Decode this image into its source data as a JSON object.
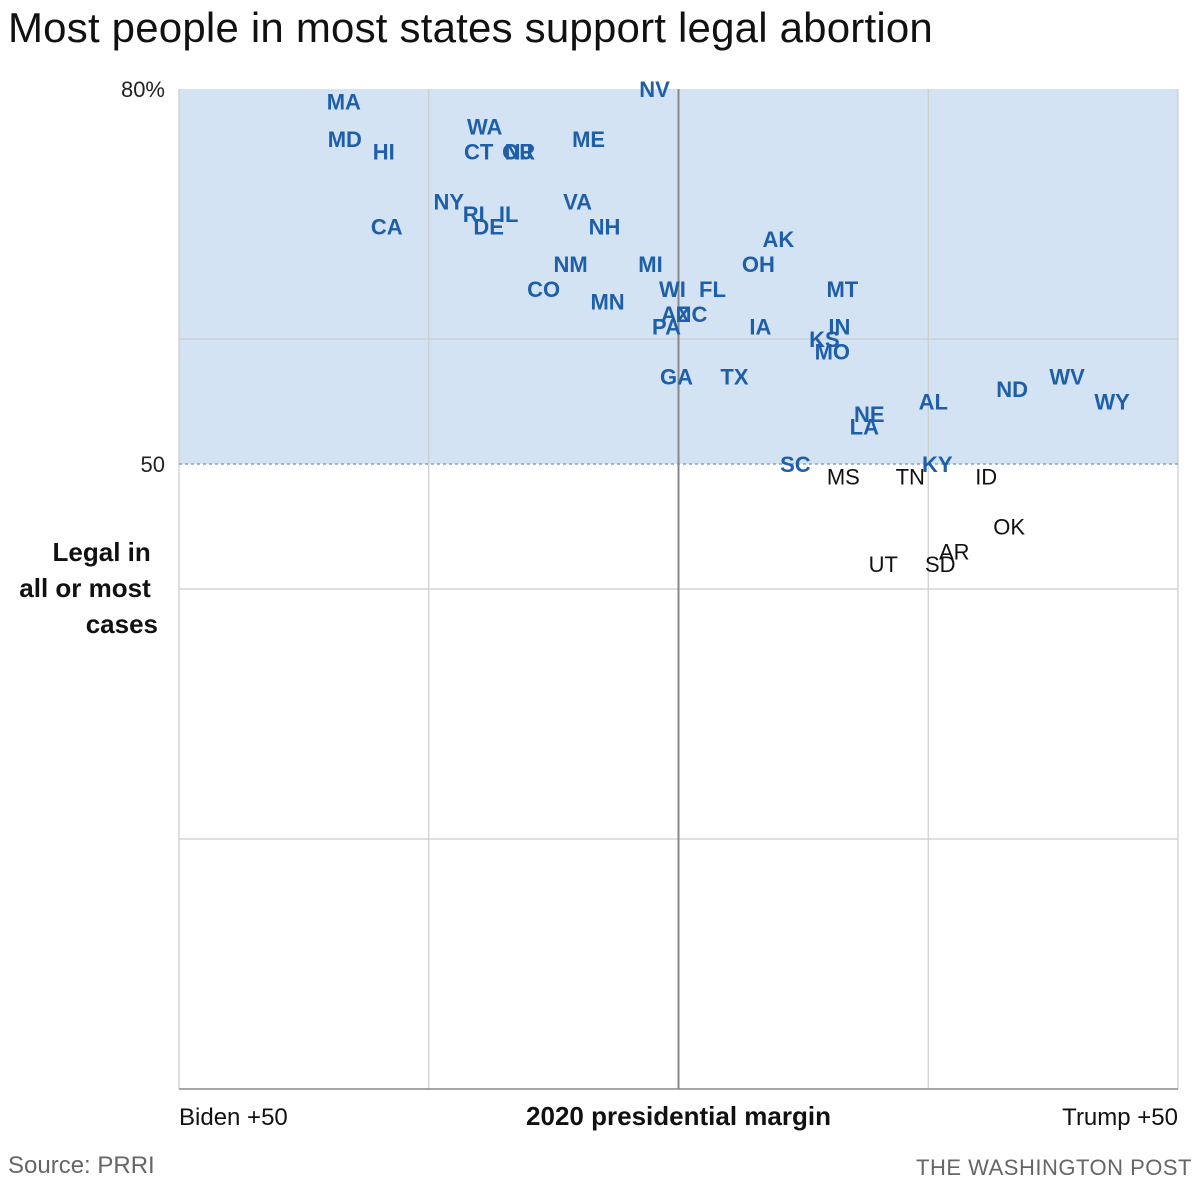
{
  "title": "Most people in most states support legal abortion",
  "source": "Source: PRRI",
  "credit": "THE WASHINGTON POST",
  "colors": {
    "shade": "#d3e3f4",
    "highlight": "#1f5fa8",
    "grid": "#cccccc",
    "axis": "#888888"
  },
  "chart_data": {
    "type": "scatter",
    "xlabel": "2020 presidential margin",
    "ylabel": [
      "Legal in",
      "all or most",
      "cases"
    ],
    "x_tick_labels": {
      "left": "Biden +50",
      "right": "Trump +50"
    },
    "xlim": [
      -50,
      50
    ],
    "ylim": [
      0,
      80
    ],
    "y_ticks": [
      {
        "value": 80,
        "label": "80%"
      },
      {
        "value": 50,
        "label": "50"
      }
    ],
    "y_grid": [
      20,
      40,
      60
    ],
    "x_grid": [
      -25,
      0,
      25
    ],
    "threshold": 50,
    "threshold_style": "dotted",
    "grid": true,
    "points": [
      {
        "label": "MA",
        "x": -33.5,
        "y": 79
      },
      {
        "label": "MD",
        "x": -33.4,
        "y": 76
      },
      {
        "label": "HI",
        "x": -29.5,
        "y": 75
      },
      {
        "label": "WA",
        "x": -19.4,
        "y": 77
      },
      {
        "label": "CT",
        "x": -20,
        "y": 75
      },
      {
        "label": "OR",
        "x": -16,
        "y": 75
      },
      {
        "label": "NJ",
        "x": -16,
        "y": 75
      },
      {
        "label": "ME",
        "x": -9,
        "y": 76
      },
      {
        "label": "NV",
        "x": -2.4,
        "y": 80
      },
      {
        "label": "NY",
        "x": -23,
        "y": 71
      },
      {
        "label": "RI",
        "x": -20.5,
        "y": 70
      },
      {
        "label": "IL",
        "x": -17,
        "y": 70
      },
      {
        "label": "DE",
        "x": -19,
        "y": 69
      },
      {
        "label": "CA",
        "x": -29.2,
        "y": 69
      },
      {
        "label": "VA",
        "x": -10.1,
        "y": 71
      },
      {
        "label": "NH",
        "x": -7.4,
        "y": 69
      },
      {
        "label": "NM",
        "x": -10.8,
        "y": 66
      },
      {
        "label": "CO",
        "x": -13.5,
        "y": 64
      },
      {
        "label": "MN",
        "x": -7.1,
        "y": 63
      },
      {
        "label": "MI",
        "x": -2.8,
        "y": 66
      },
      {
        "label": "WI",
        "x": -0.6,
        "y": 64
      },
      {
        "label": "FL",
        "x": 3.4,
        "y": 64
      },
      {
        "label": "AZ",
        "x": -0.3,
        "y": 62
      },
      {
        "label": "NC",
        "x": 1.3,
        "y": 62
      },
      {
        "label": "PA",
        "x": -1.2,
        "y": 61
      },
      {
        "label": "AK",
        "x": 10,
        "y": 68
      },
      {
        "label": "OH",
        "x": 8,
        "y": 66
      },
      {
        "label": "IA",
        "x": 8.2,
        "y": 61
      },
      {
        "label": "MT",
        "x": 16.4,
        "y": 64
      },
      {
        "label": "IN",
        "x": 16.1,
        "y": 61
      },
      {
        "label": "KS",
        "x": 14.6,
        "y": 60
      },
      {
        "label": "MO",
        "x": 15.4,
        "y": 59
      },
      {
        "label": "GA",
        "x": -0.2,
        "y": 57
      },
      {
        "label": "TX",
        "x": 5.6,
        "y": 57
      },
      {
        "label": "NE",
        "x": 19.1,
        "y": 54
      },
      {
        "label": "LA",
        "x": 18.6,
        "y": 53
      },
      {
        "label": "AL",
        "x": 25.5,
        "y": 55
      },
      {
        "label": "ND",
        "x": 33.4,
        "y": 56
      },
      {
        "label": "WV",
        "x": 38.9,
        "y": 57
      },
      {
        "label": "WY",
        "x": 43.4,
        "y": 55
      },
      {
        "label": "SC",
        "x": 11.7,
        "y": 50
      },
      {
        "label": "KY",
        "x": 25.9,
        "y": 50
      },
      {
        "label": "MS",
        "x": 16.5,
        "y": 49
      },
      {
        "label": "TN",
        "x": 23.2,
        "y": 49
      },
      {
        "label": "ID",
        "x": 30.8,
        "y": 49
      },
      {
        "label": "OK",
        "x": 33.1,
        "y": 45
      },
      {
        "label": "AR",
        "x": 27.6,
        "y": 43
      },
      {
        "label": "SD",
        "x": 26.2,
        "y": 42
      },
      {
        "label": "UT",
        "x": 20.5,
        "y": 42
      }
    ]
  }
}
